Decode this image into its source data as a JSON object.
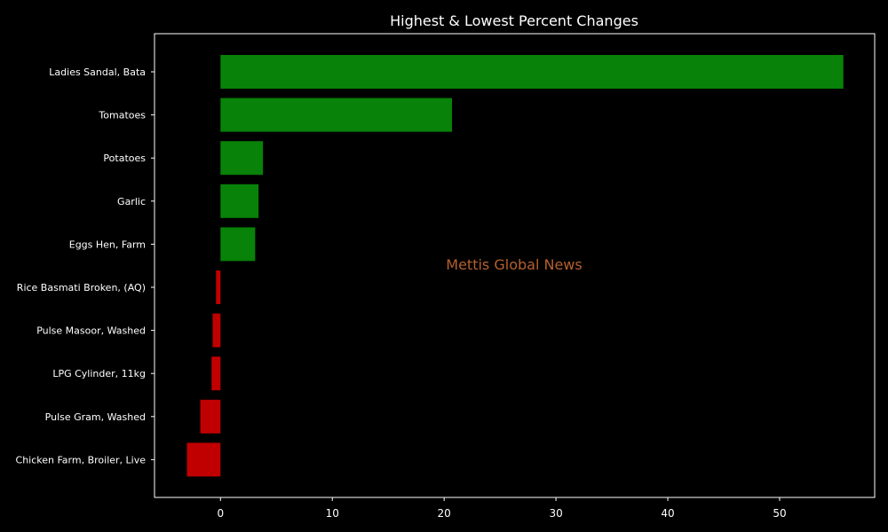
{
  "chart_data": {
    "type": "bar",
    "orientation": "horizontal",
    "title": "Highest & Lowest Percent Changes",
    "watermark": "Mettis Global News",
    "xlabel": "",
    "ylabel": "",
    "xlim": [
      -5.9,
      58.5
    ],
    "x_ticks": [
      0,
      10,
      20,
      30,
      40,
      50
    ],
    "grid": false,
    "categories": [
      "Ladies Sandal, Bata",
      "Tomatoes",
      "Potatoes",
      "Garlic",
      "Eggs Hen, Farm",
      "Rice Basmati Broken, (AQ)",
      "Pulse Masoor, Washed",
      "LPG Cylinder, 11kg",
      "Pulse Gram, Washed",
      "Chicken Farm, Broiler, Live"
    ],
    "values": [
      55.7,
      20.7,
      3.8,
      3.4,
      3.1,
      -0.4,
      -0.7,
      -0.8,
      -1.8,
      -3.0
    ],
    "colors": {
      "positive": "#088208",
      "negative": "#c00000",
      "background": "#000000",
      "axes": "#ffffff",
      "text": "#ffffff",
      "watermark": "#b5602e"
    }
  }
}
